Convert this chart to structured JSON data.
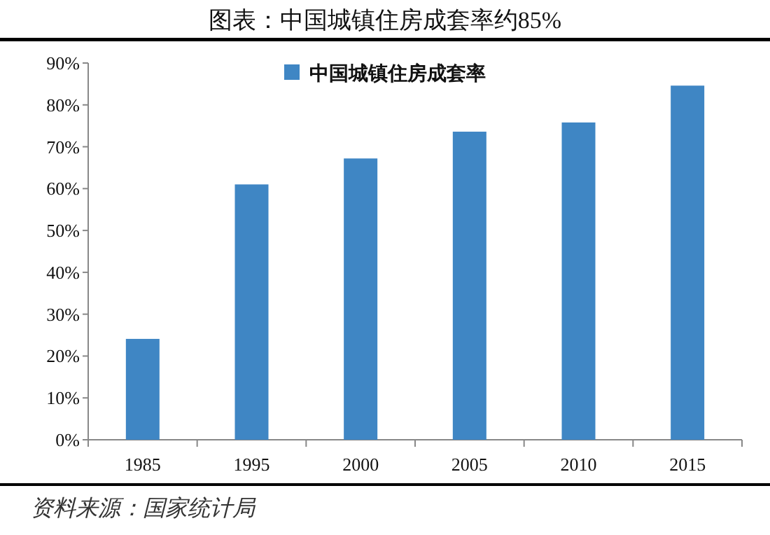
{
  "chart_data": {
    "type": "bar",
    "title": "图表：中国城镇住房成套率约85%",
    "categories": [
      "1985",
      "1995",
      "2000",
      "2005",
      "2010",
      "2015"
    ],
    "series": [
      {
        "name": "中国城镇住房成套率",
        "color": "#3f86c4",
        "values": [
          24.1,
          61,
          67.2,
          73.6,
          75.8,
          84.6
        ]
      }
    ],
    "ylim": [
      0,
      90
    ],
    "yticks": [
      {
        "value": 0,
        "label": "0%"
      },
      {
        "value": 10,
        "label": "10%"
      },
      {
        "value": 20,
        "label": "20%"
      },
      {
        "value": 30,
        "label": "30%"
      },
      {
        "value": 40,
        "label": "40%"
      },
      {
        "value": 50,
        "label": "50%"
      },
      {
        "value": 60,
        "label": "60%"
      },
      {
        "value": 70,
        "label": "70%"
      },
      {
        "value": 80,
        "label": "80%"
      },
      {
        "value": 90,
        "label": "90%"
      }
    ],
    "legend": "top",
    "annotations": [
      "资料来源：国家统计局"
    ]
  }
}
